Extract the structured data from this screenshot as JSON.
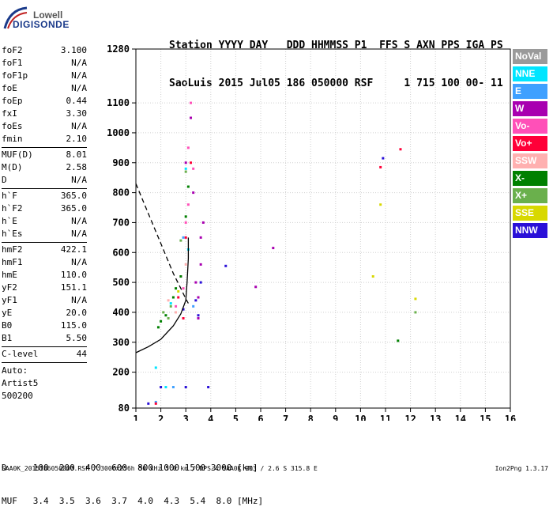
{
  "logo": {
    "line1": "Lowell",
    "line2": "DIGISONDE"
  },
  "header": {
    "line1": "Station YYYY DAY   DDD HHMMSS P1  FFS S AXN PPS IGA PS",
    "line2": "SaoLuis 2015 Jul05 186 050000 RSF     1 715 100 00- 11"
  },
  "params": [
    {
      "k": "foF2",
      "v": "3.100"
    },
    {
      "k": "foF1",
      "v": "N/A"
    },
    {
      "k": "foF1p",
      "v": "N/A"
    },
    {
      "k": "foE",
      "v": "N/A"
    },
    {
      "k": "foEp",
      "v": "0.44"
    },
    {
      "k": "fxI",
      "v": "3.30"
    },
    {
      "k": "foEs",
      "v": "N/A"
    },
    {
      "k": "fmin",
      "v": "2.10"
    },
    {
      "sep": true
    },
    {
      "k": "MUF(D)",
      "v": "8.01"
    },
    {
      "k": "M(D)",
      "v": "2.58"
    },
    {
      "k": "D",
      "v": "N/A"
    },
    {
      "sep": true
    },
    {
      "k": "h`F",
      "v": "365.0"
    },
    {
      "k": "h`F2",
      "v": "365.0"
    },
    {
      "k": "h`E",
      "v": "N/A"
    },
    {
      "k": "h`Es",
      "v": "N/A"
    },
    {
      "sep": true
    },
    {
      "k": "hmF2",
      "v": "422.1"
    },
    {
      "k": "hmF1",
      "v": "N/A"
    },
    {
      "k": "hmE",
      "v": "110.0"
    },
    {
      "k": "yF2",
      "v": "151.1"
    },
    {
      "k": "yF1",
      "v": "N/A"
    },
    {
      "k": "yE",
      "v": "20.0"
    },
    {
      "k": "B0",
      "v": "115.0"
    },
    {
      "k": "B1",
      "v": "5.50"
    },
    {
      "sep": true
    },
    {
      "k": "C-level",
      "v": "44"
    },
    {
      "sep": true
    }
  ],
  "auto": [
    "Auto:",
    "Artist5",
    "500200"
  ],
  "legend": [
    {
      "label": "NoVal",
      "color": "#9a9a9a"
    },
    {
      "label": "NNE",
      "color": "#00e5ff"
    },
    {
      "label": "E",
      "color": "#3fa0ff"
    },
    {
      "label": "W",
      "color": "#a800b0"
    },
    {
      "label": "Vo-",
      "color": "#ff50b8"
    },
    {
      "label": "Vo+",
      "color": "#ff0038"
    },
    {
      "label": "SSW",
      "color": "#ffb0b0"
    },
    {
      "label": "X-",
      "color": "#008000"
    },
    {
      "label": "X+",
      "color": "#6ab04c"
    },
    {
      "label": "SSE",
      "color": "#d8d800"
    },
    {
      "label": "NNW",
      "color": "#2a10d8"
    }
  ],
  "dmuf": {
    "d_line": "D     100  200  400  600  800 1000 1500 3000 [km]",
    "muf_line": "MUF   3.4  3.5  3.6  3.7  4.0  4.3  5.4  8.0 [MHz]"
  },
  "footer": "SAA0K_2015186050000.RSF / 300fx256h 50 kHz 5.0 km / DPS-4 SAA0K 903 / 2.6 S 315.8 E",
  "version": "Ion2Png 1.3.17",
  "chart_data": {
    "type": "scatter",
    "title": "",
    "xlabel": "",
    "ylabel": "",
    "xlim": [
      1,
      16
    ],
    "ylim": [
      80,
      1280
    ],
    "xticks": [
      1,
      2,
      3,
      4,
      5,
      6,
      7,
      8,
      9,
      10,
      11,
      12,
      13,
      14,
      15,
      16
    ],
    "yticks": [
      80,
      200,
      300,
      400,
      500,
      600,
      700,
      800,
      900,
      1000,
      1100,
      1280
    ],
    "grid": true,
    "series": [
      {
        "name": "NNE",
        "color": "#00e5ff",
        "points": [
          [
            1.8,
            215
          ],
          [
            2.2,
            150
          ],
          [
            3.0,
            880
          ],
          [
            2.4,
            430
          ],
          [
            3.1,
            610
          ]
        ]
      },
      {
        "name": "E",
        "color": "#3fa0ff",
        "points": [
          [
            2.5,
            150
          ],
          [
            1.8,
            100
          ],
          [
            3.3,
            420
          ],
          [
            2.9,
            650
          ]
        ]
      },
      {
        "name": "W",
        "color": "#a800b0",
        "points": [
          [
            3.4,
            500
          ],
          [
            3.5,
            450
          ],
          [
            3.6,
            560
          ],
          [
            3.3,
            800
          ],
          [
            3.7,
            700
          ],
          [
            3.2,
            1050
          ],
          [
            6.5,
            615
          ],
          [
            5.8,
            485
          ],
          [
            3.0,
            900
          ],
          [
            3.6,
            650
          ],
          [
            3.5,
            380
          ]
        ]
      },
      {
        "name": "Vo-",
        "color": "#ff50b8",
        "points": [
          [
            3.1,
            950
          ],
          [
            3.2,
            1100
          ],
          [
            3.0,
            700
          ],
          [
            2.9,
            480
          ],
          [
            3.3,
            880
          ],
          [
            2.6,
            420
          ],
          [
            3.1,
            760
          ],
          [
            2.8,
            520
          ]
        ]
      },
      {
        "name": "Vo+",
        "color": "#ff0038",
        "points": [
          [
            2.7,
            450
          ],
          [
            3.0,
            650
          ],
          [
            11.6,
            945
          ],
          [
            10.8,
            885
          ],
          [
            1.8,
            95
          ],
          [
            2.9,
            380
          ],
          [
            3.2,
            900
          ]
        ]
      },
      {
        "name": "SSW",
        "color": "#ffb0b0",
        "points": [
          [
            2.6,
            400
          ],
          [
            3.0,
            560
          ],
          [
            2.3,
            440
          ]
        ]
      },
      {
        "name": "X-",
        "color": "#008000",
        "points": [
          [
            2.0,
            370
          ],
          [
            1.9,
            350
          ],
          [
            2.2,
            390
          ],
          [
            2.5,
            450
          ],
          [
            2.8,
            520
          ],
          [
            3.0,
            720
          ],
          [
            3.1,
            820
          ],
          [
            11.5,
            305
          ],
          [
            2.6,
            480
          ]
        ]
      },
      {
        "name": "X+",
        "color": "#6ab04c",
        "points": [
          [
            2.1,
            400
          ],
          [
            2.4,
            420
          ],
          [
            2.8,
            640
          ],
          [
            3.0,
            870
          ],
          [
            12.2,
            400
          ],
          [
            2.3,
            380
          ]
        ]
      },
      {
        "name": "SSE",
        "color": "#d8d800",
        "points": [
          [
            10.5,
            520
          ],
          [
            12.2,
            445
          ],
          [
            10.8,
            760
          ],
          [
            2.7,
            470
          ]
        ]
      },
      {
        "name": "NNW",
        "color": "#2a10d8",
        "points": [
          [
            2.0,
            150
          ],
          [
            3.0,
            150
          ],
          [
            3.9,
            150
          ],
          [
            1.5,
            95
          ],
          [
            3.4,
            440
          ],
          [
            3.6,
            500
          ],
          [
            10.9,
            915
          ],
          [
            4.6,
            555
          ],
          [
            3.5,
            390
          ],
          [
            2.9,
            410
          ]
        ]
      }
    ],
    "profile_solid": [
      [
        1.0,
        265
      ],
      [
        1.5,
        285
      ],
      [
        2.0,
        310
      ],
      [
        2.5,
        355
      ],
      [
        2.8,
        395
      ],
      [
        3.0,
        440
      ],
      [
        3.05,
        500
      ],
      [
        3.1,
        580
      ],
      [
        3.1,
        650
      ]
    ],
    "profile_dashed": [
      [
        1.0,
        830
      ],
      [
        1.5,
        730
      ],
      [
        2.0,
        630
      ],
      [
        2.5,
        530
      ],
      [
        2.8,
        480
      ],
      [
        3.0,
        445
      ],
      [
        3.1,
        430
      ]
    ]
  }
}
